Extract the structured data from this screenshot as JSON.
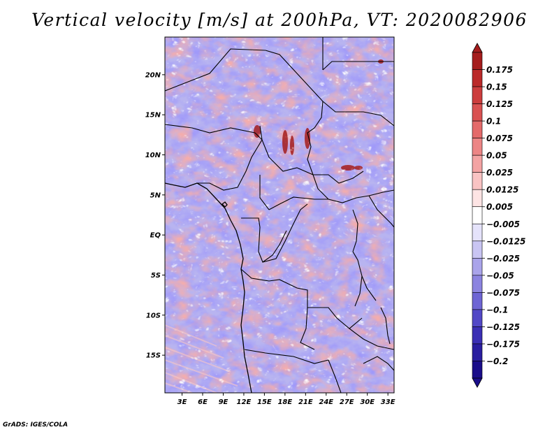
{
  "title": "Vertical velocity [m/s] at 200hPa, VT: 2020082906",
  "map": {
    "lat_labels": [
      "20N",
      "15N",
      "10N",
      "5N",
      "EQ",
      "5S",
      "10S",
      "15S"
    ],
    "lat_values": [
      20,
      15,
      10,
      5,
      0,
      -5,
      -10,
      -15
    ],
    "lon_labels": [
      "3E",
      "6E",
      "9E",
      "12E",
      "15E",
      "18E",
      "21E",
      "24E",
      "27E",
      "30E",
      "33E"
    ],
    "lon_values": [
      3,
      6,
      9,
      12,
      15,
      18,
      21,
      24,
      27,
      30,
      33
    ],
    "lon_range": [
      0.5,
      33.9
    ],
    "lat_range": [
      -19.7,
      24.7
    ]
  },
  "colorbar": {
    "labels": [
      "0.175",
      "0.15",
      "0.125",
      "0.1",
      "0.075",
      "0.05",
      "0.025",
      "0.0125",
      "0.005",
      "−0.005",
      "−0.0125",
      "−0.025",
      "−0.05",
      "−0.075",
      "−0.1",
      "−0.125",
      "−0.175",
      "−0.2"
    ],
    "colors": [
      "#a51d1d",
      "#bb2a2a",
      "#cc3d3d",
      "#d95252",
      "#e46a6a",
      "#ec8585",
      "#f3a3a3",
      "#f9c3c3",
      "#fde4e4",
      "#ffffff",
      "#e5e3fb",
      "#c9c5f3",
      "#aaa4ea",
      "#8c84e0",
      "#6e65d4",
      "#5248c6",
      "#3b2fb4",
      "#2a1ea0",
      "#1a0d8a"
    ],
    "top_color": "#a51d1d",
    "bottom_color": "#1a0d8a"
  },
  "footer": "GrADS: IGES/COLA"
}
